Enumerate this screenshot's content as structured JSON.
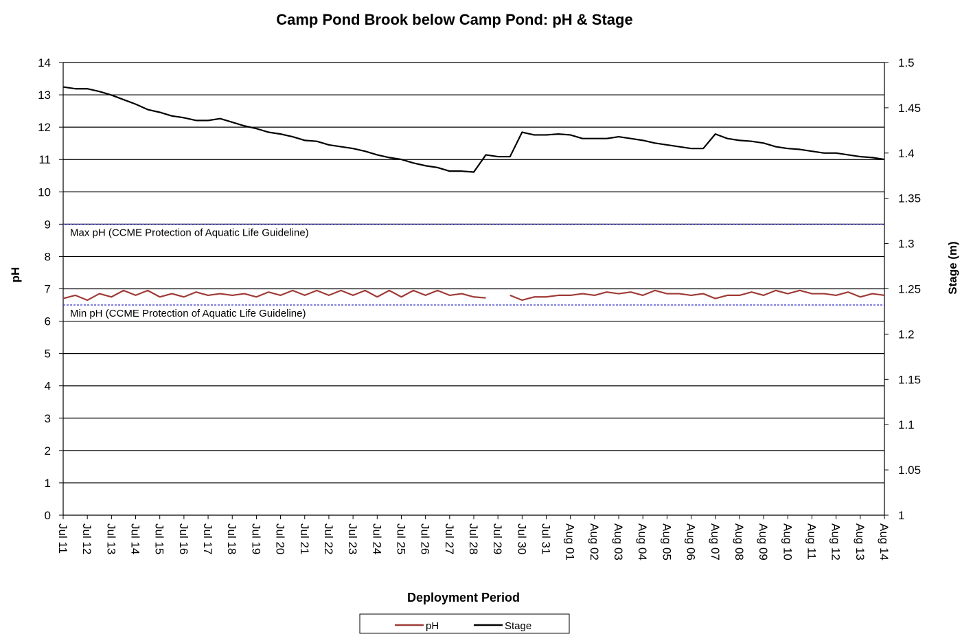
{
  "chart_data": {
    "type": "line",
    "title": "Camp Pond Brook below Camp Pond: pH & Stage",
    "x_label": "Deployment Period",
    "y_label": "pH",
    "y2_label": "Stage (m)",
    "categories": [
      "Jul 11",
      null,
      "Jul 12",
      null,
      "Jul 13",
      null,
      "Jul 14",
      null,
      "Jul 15",
      null,
      "Jul 16",
      null,
      "Jul 17",
      null,
      "Jul 18",
      null,
      "Jul 19",
      null,
      "Jul 20",
      null,
      "Jul 21",
      null,
      "Jul 22",
      null,
      "Jul 23",
      null,
      "Jul 24",
      null,
      "Jul 25",
      null,
      "Jul 26",
      null,
      "Jul 27",
      null,
      "Jul 28",
      null,
      "Jul 29",
      null,
      "Jul 30",
      null,
      "Jul 31",
      null,
      "Aug 01",
      null,
      "Aug 02",
      null,
      "Aug 03",
      null,
      "Aug 04",
      null,
      "Aug 05",
      null,
      "Aug 06",
      null,
      "Aug 07",
      null,
      "Aug 08",
      null,
      "Aug 09",
      null,
      "Aug 10",
      null,
      "Aug 11",
      null,
      "Aug 12",
      null,
      "Aug 13",
      null,
      "Aug 14"
    ],
    "series": [
      {
        "name": "pH",
        "color": "#9e3b36",
        "values": [
          6.7,
          6.8,
          6.65,
          6.85,
          6.75,
          6.95,
          6.8,
          6.95,
          6.75,
          6.85,
          6.75,
          6.9,
          6.8,
          6.85,
          6.8,
          6.85,
          6.75,
          6.9,
          6.8,
          6.95,
          6.8,
          6.95,
          6.8,
          6.95,
          6.8,
          6.95,
          6.75,
          6.95,
          6.75,
          6.95,
          6.8,
          6.95,
          6.8,
          6.85,
          6.75,
          6.72,
          null,
          6.8,
          6.65,
          6.75,
          6.75,
          6.8,
          6.8,
          6.85,
          6.8,
          6.9,
          6.85,
          6.9,
          6.8,
          6.95,
          6.85,
          6.85,
          6.8,
          6.85,
          6.7,
          6.8,
          6.8,
          6.9,
          6.8,
          6.95,
          6.85,
          6.95,
          6.85,
          6.85,
          6.8,
          6.9,
          6.75,
          6.85,
          6.8
        ]
      },
      {
        "name": "Stage",
        "color": "#000000",
        "axis": "y2",
        "values": [
          1.473,
          1.471,
          1.471,
          1.468,
          1.464,
          1.459,
          1.454,
          1.448,
          1.445,
          1.441,
          1.439,
          1.436,
          1.436,
          1.438,
          1.434,
          1.43,
          1.427,
          1.423,
          1.421,
          1.418,
          1.414,
          1.413,
          1.409,
          1.407,
          1.405,
          1.402,
          1.398,
          1.395,
          1.393,
          1.389,
          1.386,
          1.384,
          1.38,
          1.38,
          1.379,
          1.398,
          1.396,
          1.396,
          1.423,
          1.42,
          1.42,
          1.421,
          1.42,
          1.416,
          1.416,
          1.416,
          1.418,
          1.416,
          1.414,
          1.411,
          1.409,
          1.407,
          1.405,
          1.405,
          1.421,
          1.416,
          1.414,
          1.413,
          1.411,
          1.407,
          1.405,
          1.404,
          1.402,
          1.4,
          1.4,
          1.398,
          1.396,
          1.395,
          1.393
        ]
      }
    ],
    "guidelines": [
      {
        "value": 9,
        "label": "Max pH  (CCME  Protection of Aquatic Life Guideline)",
        "color": "#3333cc"
      },
      {
        "value": 6.5,
        "label": "Min pH  (CCME  Protection of Aquatic Life Guideline)",
        "color": "#3333cc"
      }
    ],
    "ylim": [
      0,
      14
    ],
    "yticks": [
      0,
      1,
      2,
      3,
      4,
      5,
      6,
      7,
      8,
      9,
      10,
      11,
      12,
      13,
      14
    ],
    "y2lim": [
      1,
      1.5
    ],
    "y2ticks": [
      1,
      1.05,
      1.1,
      1.15,
      1.2,
      1.25,
      1.3,
      1.35,
      1.4,
      1.45,
      1.5
    ],
    "grid": true,
    "legend": "bottom"
  }
}
